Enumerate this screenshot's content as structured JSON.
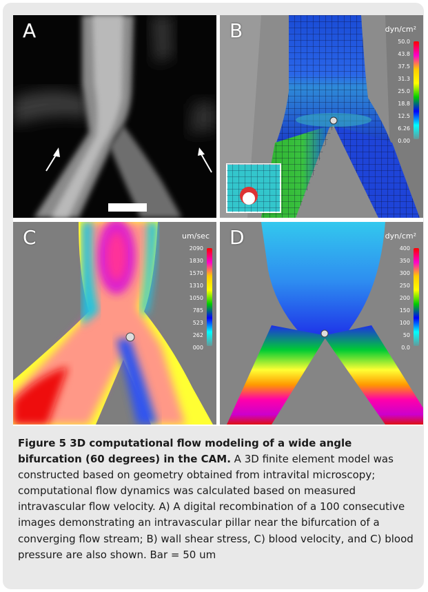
{
  "figure": {
    "panels": [
      {
        "label": "A",
        "scale_bar_label": ""
      },
      {
        "label": "B",
        "unit": "dyn/cm²",
        "ticks": [
          "50.0",
          "43.8",
          "37.5",
          "31.3",
          "25.0",
          "18.8",
          "12.5",
          "6.26",
          "0.00"
        ]
      },
      {
        "label": "C",
        "unit": "um/sec",
        "ticks": [
          "2090",
          "1830",
          "1570",
          "1310",
          "1050",
          "785",
          "523",
          "262",
          "000"
        ]
      },
      {
        "label": "D",
        "unit": "dyn/cm²",
        "ticks": [
          "400",
          "350",
          "300",
          "250",
          "200",
          "150",
          "100",
          "50",
          "0.0"
        ]
      }
    ],
    "colors": {
      "colormap": [
        "#ff0000",
        "#ff00cc",
        "#ffcc00",
        "#ffff00",
        "#00cc00",
        "#0000ff",
        "#00ffff",
        "#669999"
      ]
    }
  },
  "caption": {
    "title": "Figure 5 3D computational flow modeling of a wide angle bifurcation (60 degrees) in the CAM.",
    "body": " A 3D finite element model was constructed based on geometry obtained from intravital microscopy; computational flow dynamics was calculated based on measured intravascular flow velocity. A) A digital recombination of a 100 consecutive images demonstrating an intravascular pillar near the bifurcation of a converging flow stream; B) wall shear stress, C) blood velocity, and C) blood pressure are also shown. Bar = 50 um"
  }
}
